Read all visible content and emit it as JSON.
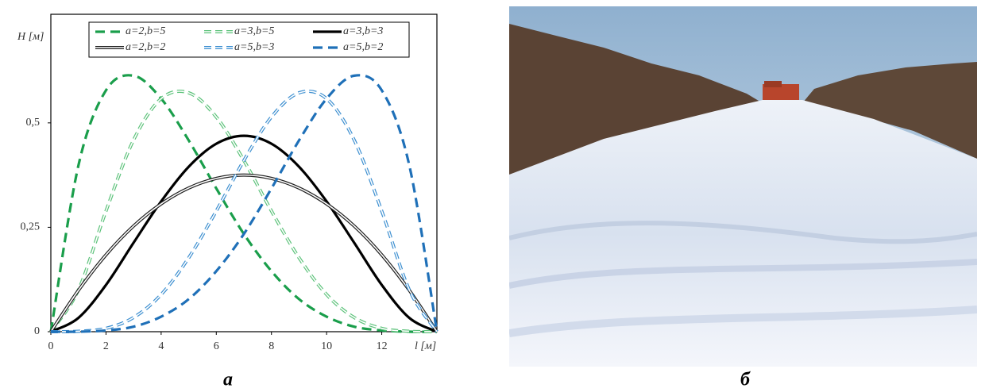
{
  "chart_data": {
    "type": "line",
    "y_label": "H [м]",
    "x_label": "l [м]",
    "x": [
      0,
      1,
      2,
      3,
      4,
      5,
      6,
      7,
      8,
      9,
      10,
      11,
      12,
      13,
      14
    ],
    "xlim": [
      0,
      14
    ],
    "xticks": [
      0,
      2,
      4,
      6,
      8,
      10,
      12
    ],
    "ylim": [
      0,
      0.76
    ],
    "yticks": [
      0,
      {
        "value": 0.25,
        "label": "0,25"
      },
      {
        "value": 0.5,
        "label": "0,5"
      }
    ],
    "series": [
      {
        "name": "a=2,b=5",
        "color": "#1a9e4b",
        "line_style": "dashed",
        "double": false,
        "values": [
          0,
          0.398,
          0.578,
          0.613,
          0.558,
          0.458,
          0.343,
          0.234,
          0.145,
          0.078,
          0.036,
          0.012,
          0.003,
          0,
          0
        ]
      },
      {
        "name": "a=3,b=5",
        "color": "#5cc27a",
        "line_style": "dashed",
        "double": true,
        "values": [
          0,
          0.1,
          0.289,
          0.459,
          0.558,
          0.572,
          0.514,
          0.41,
          0.289,
          0.177,
          0.089,
          0.034,
          0.008,
          0.001,
          0
        ]
      },
      {
        "name": "a=3,b=3",
        "color": "#000000",
        "line_style": "solid",
        "double": false,
        "values": [
          0,
          0.033,
          0.112,
          0.213,
          0.312,
          0.395,
          0.45,
          0.469,
          0.45,
          0.395,
          0.312,
          0.213,
          0.112,
          0.033,
          0
        ]
      },
      {
        "name": "a=2,b=2",
        "color": "#222222",
        "line_style": "solid",
        "double": true,
        "values": [
          0,
          0.099,
          0.184,
          0.253,
          0.306,
          0.344,
          0.367,
          0.375,
          0.367,
          0.344,
          0.306,
          0.253,
          0.184,
          0.099,
          0
        ]
      },
      {
        "name": "a=5,b=3",
        "color": "#3d8fd0",
        "line_style": "dashed",
        "double": true,
        "values": [
          0,
          0.001,
          0.008,
          0.034,
          0.089,
          0.177,
          0.289,
          0.41,
          0.514,
          0.572,
          0.558,
          0.459,
          0.289,
          0.1,
          0
        ]
      },
      {
        "name": "a=5,b=2",
        "color": "#1f70b8",
        "line_style": "dashed",
        "double": false,
        "values": [
          0,
          0,
          0.003,
          0.012,
          0.036,
          0.078,
          0.145,
          0.234,
          0.343,
          0.458,
          0.558,
          0.613,
          0.578,
          0.398,
          0
        ]
      }
    ]
  },
  "panel_labels": [
    "а",
    "б"
  ]
}
